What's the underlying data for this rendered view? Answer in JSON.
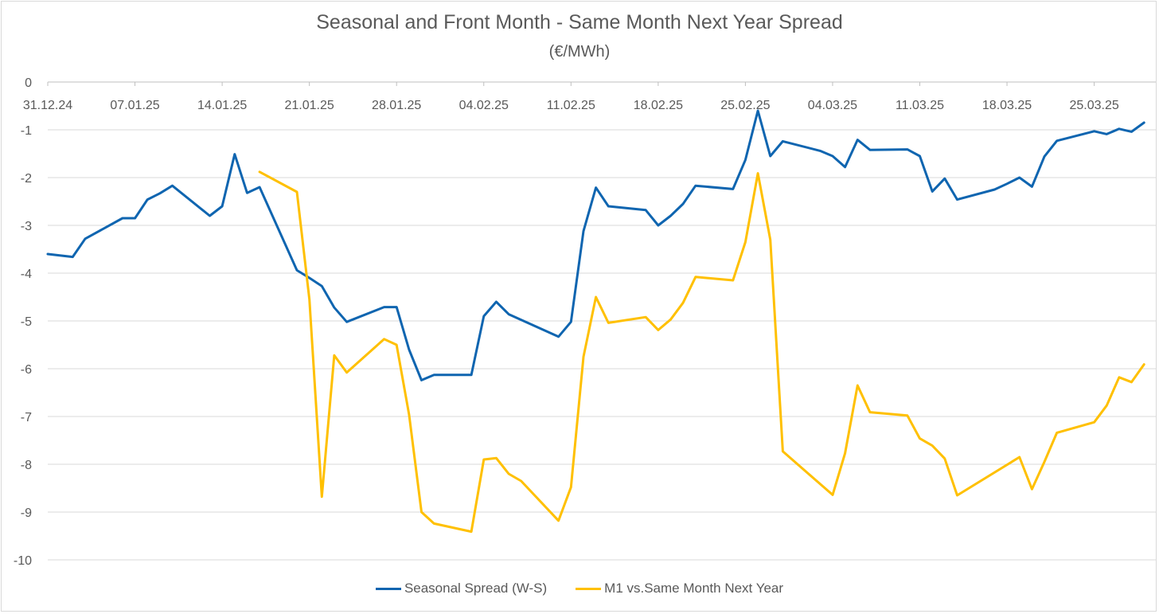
{
  "chart_data": {
    "type": "line",
    "title": "Seasonal and Front Month - Same Month Next Year Spread",
    "subtitle": "(€/MWh)",
    "xlabel": "",
    "ylabel": "",
    "ylim": [
      -10,
      0
    ],
    "yticks": [
      0,
      -1,
      -2,
      -3,
      -4,
      -5,
      -6,
      -7,
      -8,
      -9,
      -10
    ],
    "x_tick_labels": [
      "31.12.24",
      "07.01.25",
      "14.01.25",
      "21.01.25",
      "28.01.25",
      "04.02.25",
      "11.02.25",
      "18.02.25",
      "25.02.25",
      "04.03.25",
      "11.03.25",
      "18.03.25",
      "25.03.25"
    ],
    "x_axis_position": "top",
    "grid": true,
    "legend_position": "bottom",
    "series": [
      {
        "name": "Seasonal Spread (W-S)",
        "color": "#0F65B0",
        "points": [
          [
            "2024-12-31",
            -3.6
          ],
          [
            "2025-01-02",
            -3.66
          ],
          [
            "2025-01-03",
            -3.28
          ],
          [
            "2025-01-06",
            -2.85
          ],
          [
            "2025-01-07",
            -2.85
          ],
          [
            "2025-01-08",
            -2.46
          ],
          [
            "2025-01-09",
            -2.33
          ],
          [
            "2025-01-10",
            -2.17
          ],
          [
            "2025-01-13",
            -2.8
          ],
          [
            "2025-01-14",
            -2.6
          ],
          [
            "2025-01-15",
            -1.51
          ],
          [
            "2025-01-16",
            -2.32
          ],
          [
            "2025-01-17",
            -2.2
          ],
          [
            "2025-01-20",
            -3.94
          ],
          [
            "2025-01-21",
            -4.1
          ],
          [
            "2025-01-22",
            -4.27
          ],
          [
            "2025-01-23",
            -4.72
          ],
          [
            "2025-01-24",
            -5.02
          ],
          [
            "2025-01-27",
            -4.71
          ],
          [
            "2025-01-28",
            -4.71
          ],
          [
            "2025-01-29",
            -5.6
          ],
          [
            "2025-01-30",
            -6.24
          ],
          [
            "2025-01-31",
            -6.13
          ],
          [
            "2025-02-03",
            -6.13
          ],
          [
            "2025-02-04",
            -4.9
          ],
          [
            "2025-02-05",
            -4.6
          ],
          [
            "2025-02-06",
            -4.86
          ],
          [
            "2025-02-10",
            -5.33
          ],
          [
            "2025-02-11",
            -5.02
          ],
          [
            "2025-02-12",
            -3.12
          ],
          [
            "2025-02-13",
            -2.21
          ],
          [
            "2025-02-14",
            -2.6
          ],
          [
            "2025-02-17",
            -2.68
          ],
          [
            "2025-02-18",
            -3.0
          ],
          [
            "2025-02-19",
            -2.8
          ],
          [
            "2025-02-20",
            -2.55
          ],
          [
            "2025-02-21",
            -2.17
          ],
          [
            "2025-02-24",
            -2.24
          ],
          [
            "2025-02-25",
            -1.63
          ],
          [
            "2025-02-26",
            -0.6
          ],
          [
            "2025-02-27",
            -1.55
          ],
          [
            "2025-02-28",
            -1.24
          ],
          [
            "2025-03-03",
            -1.44
          ],
          [
            "2025-03-04",
            -1.55
          ],
          [
            "2025-03-05",
            -1.78
          ],
          [
            "2025-03-06",
            -1.21
          ],
          [
            "2025-03-07",
            -1.42
          ],
          [
            "2025-03-10",
            -1.41
          ],
          [
            "2025-03-11",
            -1.55
          ],
          [
            "2025-03-12",
            -2.29
          ],
          [
            "2025-03-13",
            -2.02
          ],
          [
            "2025-03-14",
            -2.46
          ],
          [
            "2025-03-17",
            -2.25
          ],
          [
            "2025-03-18",
            -2.13
          ],
          [
            "2025-03-19",
            -2.0
          ],
          [
            "2025-03-20",
            -2.19
          ],
          [
            "2025-03-21",
            -1.56
          ],
          [
            "2025-03-22",
            -1.23
          ],
          [
            "2025-03-25",
            -1.03
          ],
          [
            "2025-03-26",
            -1.09
          ],
          [
            "2025-03-27",
            -0.98
          ],
          [
            "2025-03-28",
            -1.04
          ],
          [
            "2025-03-29",
            -0.85
          ]
        ]
      },
      {
        "name": "M1 vs.Same Month Next Year",
        "color": "#FFC000",
        "points": [
          [
            "2025-01-17",
            -1.88
          ],
          [
            "2025-01-20",
            -2.3
          ],
          [
            "2025-01-21",
            -4.55
          ],
          [
            "2025-01-22",
            -8.68
          ],
          [
            "2025-01-23",
            -5.72
          ],
          [
            "2025-01-24",
            -6.08
          ],
          [
            "2025-01-27",
            -5.38
          ],
          [
            "2025-01-28",
            -5.5
          ],
          [
            "2025-01-29",
            -6.96
          ],
          [
            "2025-01-30",
            -9.0
          ],
          [
            "2025-01-31",
            -9.24
          ],
          [
            "2025-02-03",
            -9.41
          ],
          [
            "2025-02-04",
            -7.9
          ],
          [
            "2025-02-05",
            -7.87
          ],
          [
            "2025-02-06",
            -8.2
          ],
          [
            "2025-02-07",
            -8.35
          ],
          [
            "2025-02-10",
            -9.18
          ],
          [
            "2025-02-11",
            -8.48
          ],
          [
            "2025-02-12",
            -5.75
          ],
          [
            "2025-02-13",
            -4.5
          ],
          [
            "2025-02-14",
            -5.04
          ],
          [
            "2025-02-17",
            -4.92
          ],
          [
            "2025-02-18",
            -5.19
          ],
          [
            "2025-02-19",
            -4.97
          ],
          [
            "2025-02-20",
            -4.62
          ],
          [
            "2025-02-21",
            -4.08
          ],
          [
            "2025-02-24",
            -4.15
          ],
          [
            "2025-02-25",
            -3.35
          ],
          [
            "2025-02-26",
            -1.91
          ],
          [
            "2025-02-27",
            -3.3
          ],
          [
            "2025-02-28",
            -7.73
          ],
          [
            "2025-03-04",
            -8.64
          ],
          [
            "2025-03-05",
            -7.77
          ],
          [
            "2025-03-06",
            -6.35
          ],
          [
            "2025-03-07",
            -6.91
          ],
          [
            "2025-03-10",
            -6.98
          ],
          [
            "2025-03-11",
            -7.46
          ],
          [
            "2025-03-12",
            -7.61
          ],
          [
            "2025-03-13",
            -7.88
          ],
          [
            "2025-03-14",
            -8.65
          ],
          [
            "2025-03-19",
            -7.85
          ],
          [
            "2025-03-20",
            -8.52
          ],
          [
            "2025-03-21",
            -7.95
          ],
          [
            "2025-03-22",
            -7.34
          ],
          [
            "2025-03-25",
            -7.12
          ],
          [
            "2025-03-26",
            -6.77
          ],
          [
            "2025-03-27",
            -6.18
          ],
          [
            "2025-03-28",
            -6.28
          ],
          [
            "2025-03-29",
            -5.91
          ]
        ]
      }
    ]
  }
}
